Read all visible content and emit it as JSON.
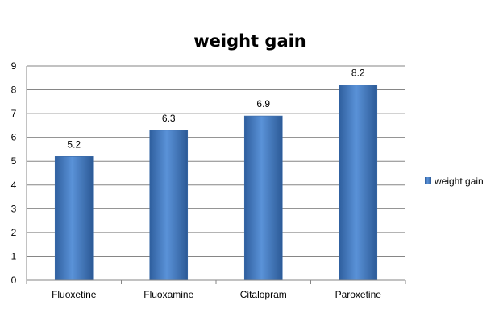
{
  "chart_data": {
    "type": "bar",
    "title": "weight gain",
    "xlabel": "",
    "ylabel": "",
    "categories": [
      "Fluoxetine",
      "Fluoxamine",
      "Citalopram",
      "Paroxetine"
    ],
    "series": [
      {
        "name": "weight gain",
        "values": [
          5.2,
          6.3,
          6.9,
          8.2
        ],
        "color": "#4a7ebb"
      }
    ],
    "data_labels": [
      "5.2",
      "6.3",
      "6.9",
      "8.2"
    ],
    "y_ticks": [
      "0",
      "1",
      "2",
      "3",
      "4",
      "5",
      "6",
      "7",
      "8",
      "9"
    ],
    "ylim": [
      0,
      9
    ],
    "grid": true,
    "legend_position": "right"
  }
}
